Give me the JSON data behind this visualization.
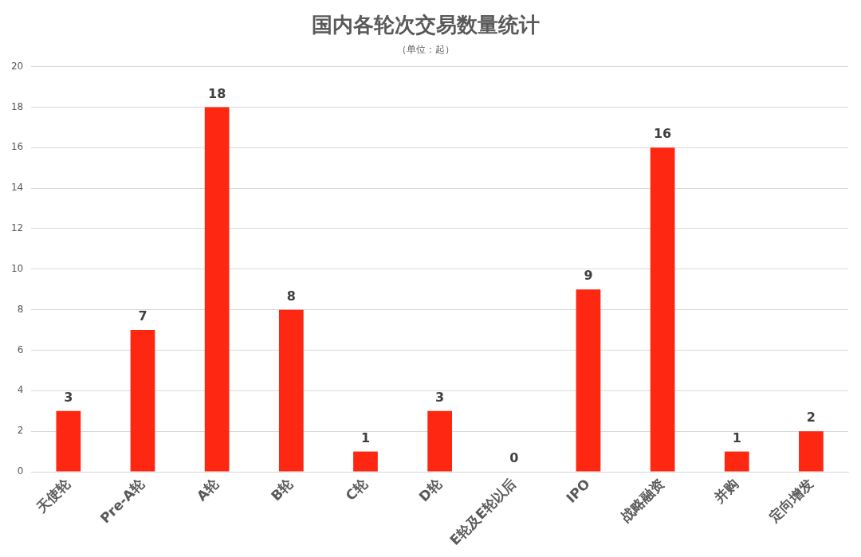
{
  "chart_data": {
    "type": "bar",
    "title": "国内各轮次交易数量统计",
    "subtitle": "（单位：起）",
    "categories": [
      "天使轮",
      "Pre-A轮",
      "A轮",
      "B轮",
      "C轮",
      "D轮",
      "E轮及E轮以后",
      "IPO",
      "战略融资",
      "并购",
      "定向增发"
    ],
    "values": [
      3,
      7,
      18,
      8,
      1,
      3,
      0,
      9,
      16,
      1,
      2
    ],
    "color": "#fe2712",
    "ylim": [
      0,
      20
    ],
    "yticks": [
      0,
      2,
      4,
      6,
      8,
      10,
      12,
      14,
      16,
      18,
      20
    ],
    "grid": "y",
    "data_labels": true,
    "legend": false
  }
}
